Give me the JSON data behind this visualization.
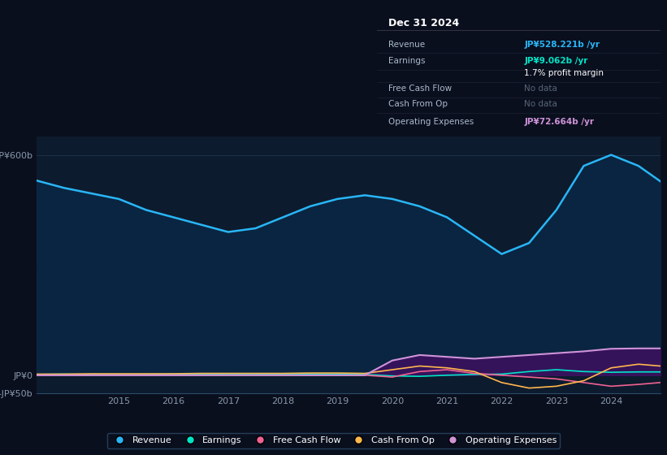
{
  "bg_color": "#0a0f1e",
  "plot_bg_color": "#0d1b2e",
  "title_box_bg": "#000000",
  "title_date": "Dec 31 2024",
  "info_rows": [
    {
      "label": "Revenue",
      "value": "JP¥528.221b /yr",
      "value_color": "#29b6f6",
      "bold": true
    },
    {
      "label": "Earnings",
      "value": "JP¥9.062b /yr",
      "value_color": "#00e5c8",
      "bold": true
    },
    {
      "label": "",
      "value": "1.7% profit margin",
      "value_color": "#ffffff",
      "bold": false
    },
    {
      "label": "Free Cash Flow",
      "value": "No data",
      "value_color": "#556677",
      "bold": false
    },
    {
      "label": "Cash From Op",
      "value": "No data",
      "value_color": "#556677",
      "bold": false
    },
    {
      "label": "Operating Expenses",
      "value": "JP¥72.664b /yr",
      "value_color": "#ce93d8",
      "bold": true
    }
  ],
  "ylim": [
    -50,
    650
  ],
  "yticks": [
    -50,
    0,
    600
  ],
  "ytick_labels": [
    "-JP¥50b",
    "JP¥0",
    "JP¥600b"
  ],
  "years": [
    2013.5,
    2014,
    2014.5,
    2015,
    2015.5,
    2016,
    2016.5,
    2017,
    2017.5,
    2018,
    2018.5,
    2019,
    2019.5,
    2020,
    2020.5,
    2021,
    2021.5,
    2022,
    2022.5,
    2023,
    2023.5,
    2024,
    2024.5,
    2024.9
  ],
  "revenue": [
    530,
    510,
    495,
    480,
    450,
    430,
    410,
    390,
    400,
    430,
    460,
    480,
    490,
    480,
    460,
    430,
    380,
    330,
    360,
    450,
    570,
    600,
    570,
    528
  ],
  "earnings": [
    2,
    3,
    2,
    2,
    2,
    3,
    3,
    2,
    2,
    3,
    3,
    3,
    2,
    -2,
    -3,
    0,
    2,
    3,
    10,
    15,
    10,
    8,
    9,
    9
  ],
  "free_cash_flow": [
    0,
    0,
    0,
    0,
    0,
    0,
    0,
    0,
    0,
    0,
    0,
    0,
    0,
    -5,
    10,
    15,
    5,
    0,
    -5,
    -10,
    -20,
    -30,
    -25,
    -20
  ],
  "cash_from_op": [
    3,
    3,
    4,
    4,
    4,
    4,
    5,
    5,
    5,
    5,
    6,
    6,
    5,
    15,
    25,
    20,
    10,
    -20,
    -35,
    -30,
    -15,
    20,
    30,
    25
  ],
  "operating_expenses": [
    0,
    0,
    0,
    0,
    0,
    0,
    0,
    0,
    0,
    0,
    0,
    0,
    0,
    40,
    55,
    50,
    45,
    50,
    55,
    60,
    65,
    72,
    73,
    73
  ],
  "revenue_color": "#29b6f6",
  "earnings_color": "#00e5c8",
  "free_cash_flow_color": "#f06292",
  "cash_from_op_color": "#ffb74d",
  "operating_expenses_color": "#ce93d8",
  "revenue_fill_color": "#0a2744",
  "operating_fill_color": "#3d1060",
  "x_tick_years": [
    2015,
    2016,
    2017,
    2018,
    2019,
    2020,
    2021,
    2022,
    2023,
    2024
  ],
  "grid_color": "#1e3a5c",
  "text_color": "#8899aa",
  "legend_items": [
    {
      "label": "Revenue",
      "color": "#29b6f6"
    },
    {
      "label": "Earnings",
      "color": "#00e5c8"
    },
    {
      "label": "Free Cash Flow",
      "color": "#f06292"
    },
    {
      "label": "Cash From Op",
      "color": "#ffb74d"
    },
    {
      "label": "Operating Expenses",
      "color": "#ce93d8"
    }
  ]
}
